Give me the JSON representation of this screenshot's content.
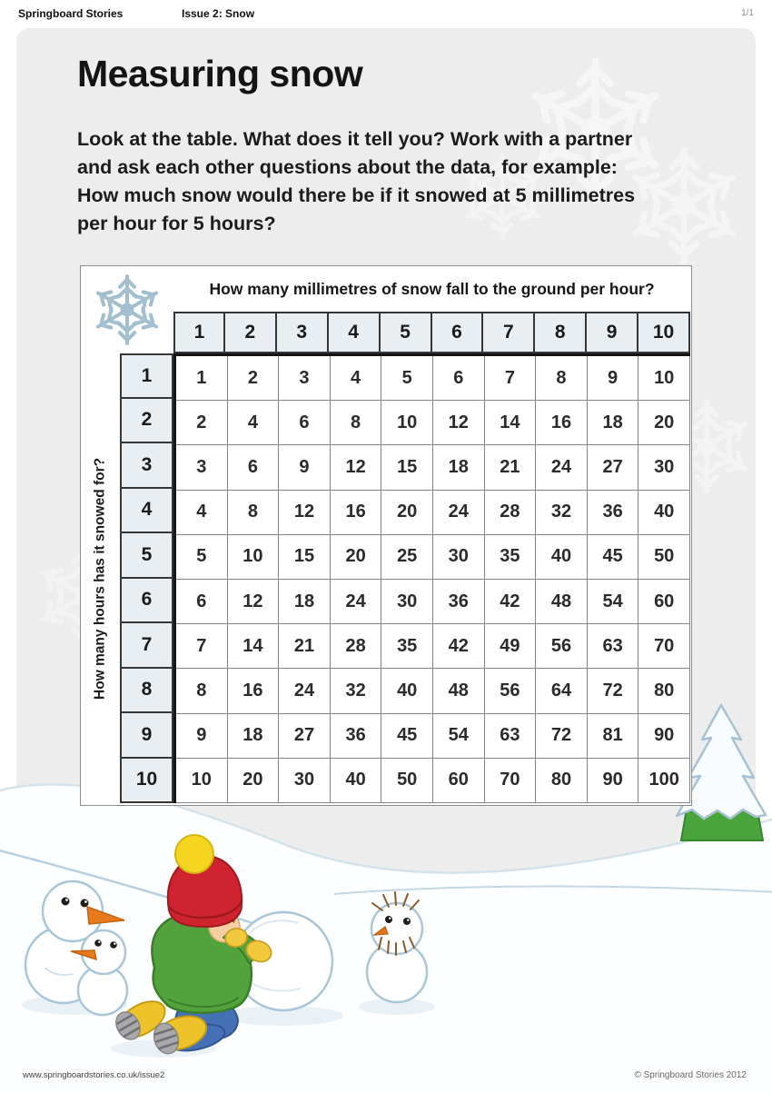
{
  "page": {
    "topbar": {
      "brand": "Springboard Stories",
      "issue": "Issue 2: Snow",
      "page_indicator": "1/1"
    },
    "title": "Measuring snow",
    "intro_lines": [
      "Look at the table. What does it tell you? Work with a partner",
      "and ask each other questions about the data, for example:",
      "How much snow would there be if it snowed at 5 millimetres",
      "per hour for 5 hours?"
    ],
    "footer": {
      "url": "www.springboardstories.co.uk/issue2",
      "copyright": "© Springboard Stories 2012"
    }
  },
  "table": {
    "column_axis_label": "How many millimetres of snow fall to the ground per hour?",
    "row_axis_label": "How many hours has it snowed for?",
    "column_headers": [
      "1",
      "2",
      "3",
      "4",
      "5",
      "6",
      "7",
      "8",
      "9",
      "10"
    ],
    "row_headers": [
      "1",
      "2",
      "3",
      "4",
      "5",
      "6",
      "7",
      "8",
      "9",
      "10"
    ],
    "values": [
      [
        1,
        2,
        3,
        4,
        5,
        6,
        7,
        8,
        9,
        10
      ],
      [
        2,
        4,
        6,
        8,
        10,
        12,
        14,
        16,
        18,
        20
      ],
      [
        3,
        6,
        9,
        12,
        15,
        18,
        21,
        24,
        27,
        30
      ],
      [
        4,
        8,
        12,
        16,
        20,
        24,
        28,
        32,
        36,
        40
      ],
      [
        5,
        10,
        15,
        20,
        25,
        30,
        35,
        40,
        45,
        50
      ],
      [
        6,
        12,
        18,
        24,
        30,
        36,
        42,
        48,
        54,
        60
      ],
      [
        7,
        14,
        21,
        28,
        35,
        42,
        49,
        56,
        63,
        70
      ],
      [
        8,
        16,
        24,
        32,
        40,
        48,
        56,
        64,
        72,
        80
      ],
      [
        9,
        18,
        27,
        36,
        45,
        54,
        63,
        72,
        81,
        90
      ],
      [
        10,
        20,
        30,
        40,
        50,
        60,
        70,
        80,
        90,
        100
      ]
    ]
  },
  "icons": {
    "table_corner": "snowflake-icon",
    "card_background": "snowflake-pattern"
  },
  "illustration": {
    "description": "Snowy scene: two small snowmen with carrot noses, a child in a red bobble hat and green coat rolling a large snowball, a twig-haired snowman, and a snow-covered fir tree."
  },
  "colors": {
    "card_background": "#ededee",
    "header_cell_fill": "#e8eef1",
    "table_border_dark": "#363636",
    "data_cell_border": "#858585",
    "snow_outline": "#aac6d8",
    "boy_hat_red": "#cf2330",
    "pompom_yellow": "#f5d520",
    "jacket_green": "#53a33d",
    "trousers_blue": "#4470b5",
    "boots_yellow": "#eec32a",
    "carrot_orange": "#e87a1e",
    "tree_green": "#49a53b"
  }
}
